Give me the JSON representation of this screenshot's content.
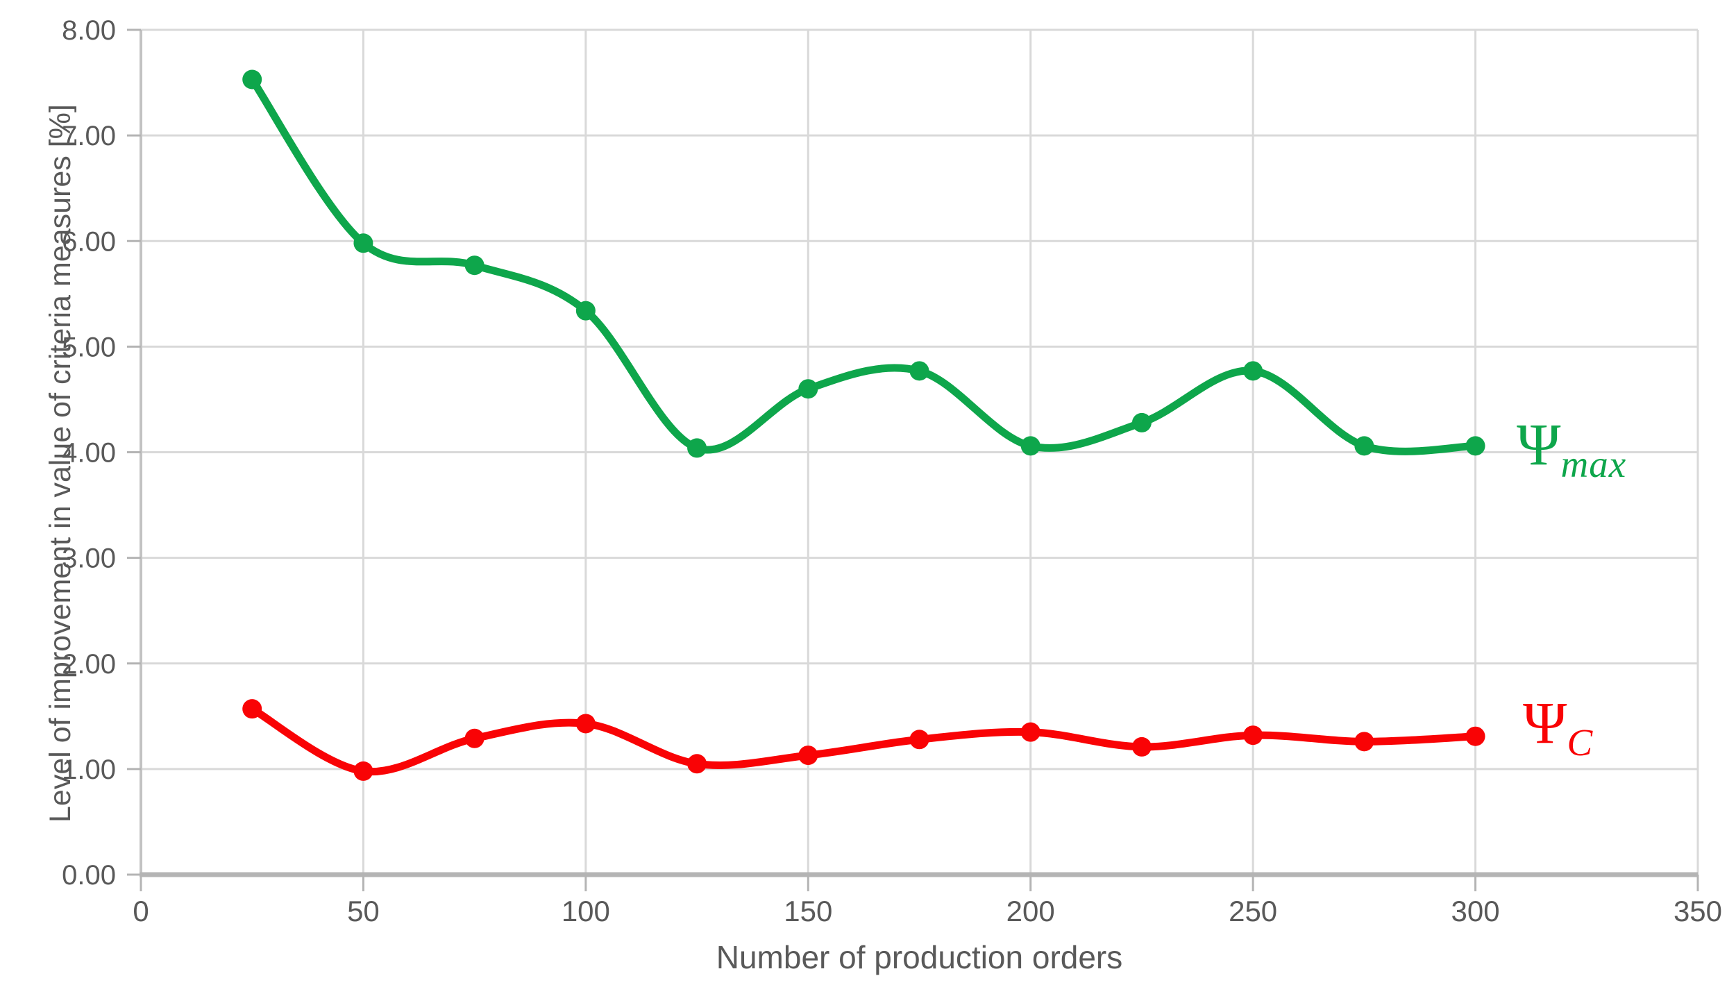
{
  "chart_data": {
    "type": "line",
    "title": "",
    "xlabel": "Number of production orders",
    "ylabel": "Level of improvement in value of criteria measures [%]",
    "x": [
      25,
      50,
      75,
      100,
      125,
      150,
      175,
      200,
      225,
      250,
      275,
      300
    ],
    "series": [
      {
        "name": "Psi_max",
        "label_main": "Ψ",
        "label_sub": "max",
        "color": "#0ea64b",
        "values": [
          7.53,
          5.98,
          5.77,
          5.34,
          4.04,
          4.6,
          4.77,
          4.06,
          4.28,
          4.77,
          4.06,
          4.06
        ]
      },
      {
        "name": "Psi_C",
        "label_main": "Ψ",
        "label_sub": "C",
        "color": "#f90305",
        "values": [
          1.57,
          0.98,
          1.29,
          1.43,
          1.05,
          1.13,
          1.28,
          1.35,
          1.21,
          1.32,
          1.26,
          1.31
        ]
      }
    ],
    "xlim": [
      0,
      350
    ],
    "ylim": [
      0,
      8
    ],
    "x_ticks": [
      0,
      50,
      100,
      150,
      200,
      250,
      300,
      350
    ],
    "y_ticks": [
      0,
      1,
      2,
      3,
      4,
      5,
      6,
      7,
      8
    ],
    "y_tick_labels": [
      "0.00",
      "1.00",
      "2.00",
      "3.00",
      "4.00",
      "5.00",
      "6.00",
      "7.00",
      "8.00"
    ],
    "grid": true,
    "smooth": true,
    "marker": "circle",
    "legend_position": "line-end-labels",
    "colors": {
      "grid": "#d9d9d9",
      "axis": "#b4b4b4",
      "tick_text": "#595959"
    }
  }
}
